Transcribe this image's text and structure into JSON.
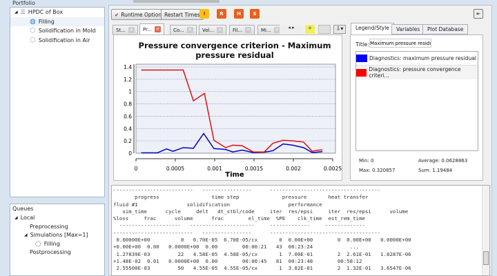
{
  "portfolio": {
    "title": "Portfolio",
    "root": "HPDC of Box",
    "items": [
      "Filling",
      "Solidification in Mold",
      "Solidification in Air"
    ]
  },
  "queues": {
    "title": "Queues",
    "local": "Local",
    "pre": "Preprocessing",
    "sims": "Simulations [Max=1]",
    "filling": "Filling",
    "post": "Postprocessing"
  },
  "toolbar": {
    "runtime_options": "Runtime Options",
    "restart_times": "Restart Times",
    "icons": [
      "warning-icon",
      "restart-r-icon",
      "restart-h-icon",
      "restart-s-icon"
    ]
  },
  "plot_tabs": [
    "St...",
    "Pr...",
    "Co...",
    "Vol...",
    "Fil...",
    "Mi..."
  ],
  "right_tabs": [
    "Legend/Style",
    "Variables",
    "Plot Database"
  ],
  "legend": {
    "title_label": "Title:",
    "title_value": "Maximum pressure residual",
    "entries": [
      {
        "label": "Diagnostics: maximum pressure residual",
        "color": "#0000ff"
      },
      {
        "label": "Diagnostics: pressure convergence criteri...",
        "color": "#ff0000"
      }
    ],
    "stats": {
      "min": "Min: 0",
      "max": "Max: 0.320857",
      "average": "Average: 0.0628863",
      "sum": "Sum: 1.19484"
    }
  },
  "chart_data": {
    "type": "line",
    "title": "Pressure convergence criterion - Maximum pressure residual",
    "xlabel": "Time",
    "ylabel": "",
    "xlim": [
      0,
      0.0025
    ],
    "ylim": [
      0,
      1.4
    ],
    "grid": true,
    "xticks": [
      "0",
      "0.0005",
      "0.001",
      "0.0015",
      "0.002",
      "0.0025"
    ],
    "yticks": [
      "0",
      "0.2",
      "0.4",
      "0.6",
      "0.8",
      "1",
      "1.2",
      "1.4"
    ],
    "series": [
      {
        "color": "#0000c0",
        "points": [
          [
            6.7e-05,
            0.005
          ],
          [
            0.00027,
            0.005
          ],
          [
            0.00039,
            0.07
          ],
          [
            0.00047,
            0.03
          ],
          [
            0.0006,
            0.09
          ],
          [
            0.00073,
            0.08
          ],
          [
            0.00086,
            0.32
          ],
          [
            0.00099,
            0.075
          ],
          [
            0.00114,
            0.06
          ],
          [
            0.00123,
            0.02
          ],
          [
            0.00135,
            0.05
          ],
          [
            0.00149,
            0.01
          ],
          [
            0.00163,
            0.015
          ],
          [
            0.00174,
            0.04
          ],
          [
            0.00187,
            0.15
          ],
          [
            0.00199,
            0.13
          ],
          [
            0.00213,
            0.09
          ],
          [
            0.00224,
            0.01
          ],
          [
            0.00237,
            0.025
          ]
        ]
      },
      {
        "color": "#e01010",
        "points": [
          [
            6.7e-05,
            1.35
          ],
          [
            0.0006,
            1.35
          ],
          [
            0.00073,
            0.85
          ],
          [
            0.00087,
            0.97
          ],
          [
            0.00099,
            0.21
          ],
          [
            0.00114,
            0.09
          ],
          [
            0.00123,
            0.13
          ],
          [
            0.00135,
            0.12
          ],
          [
            0.00149,
            0.02
          ],
          [
            0.00163,
            0.02
          ],
          [
            0.00174,
            0.16
          ],
          [
            0.00187,
            0.21
          ],
          [
            0.00199,
            0.2
          ],
          [
            0.00213,
            0.18
          ],
          [
            0.00224,
            0.03
          ],
          [
            0.00229,
            0.045
          ],
          [
            0.00237,
            0.055
          ]
        ]
      }
    ]
  },
  "console_lines": [
    "--------------------------   ----------------      ------------------------------------",
    "       progress                 time step              pressure       heat transfer",
    "fluid #1                solidification                   performance",
    "   sim_time      cycle     delt   dt_stbl/code     iter  res/epsi     iter  res/epsi      volume",
    "%loss     frac      volume      frac        el_time  %PE    clk_time  est_rem_time",
    "  --------------------   ---------------------     -------------     -------------",
    "--------------------------   ----------------      ------------------------------------",
    " 0.00000E+00          0   6.70E-05  6.70E-05/cx       0  0.00E+00        0  0.00E+00   0.0000E+00",
    "+0.00E+00  0.00   0.0000E+00  0.00        00:00:21   43  00:23:24            ...",
    " 1.27839E-03         22   4.58E-05  4.58E-05/cx       1  7.00E-01        2  2.61E-01   1.8287E-06",
    "+1.48E-02  0.01   0.0000E+00  0.00        00:00:45   81  00:23:48        00:58:12",
    " 2.55500E-03         50   4.55E-05  4.55E-05/cx       1  3.82E-01        2  1.32E-01   3.6547E-06"
  ]
}
